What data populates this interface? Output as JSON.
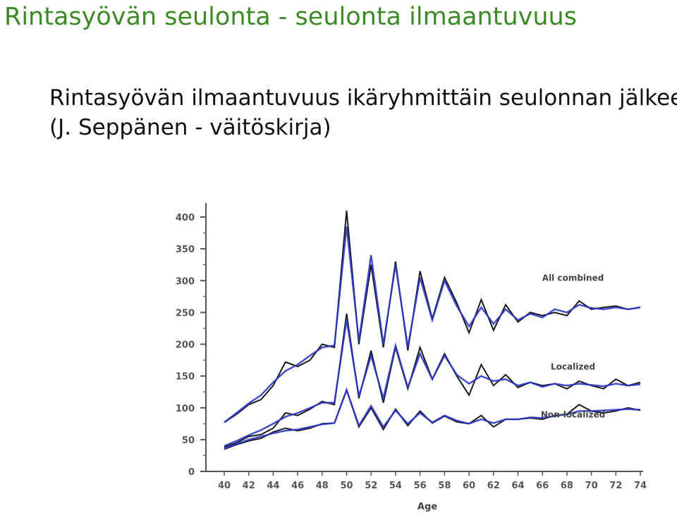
{
  "slide": {
    "title": "Rintasyövän seulonta - seulonta ilmaantuvuus",
    "subtitle_line1": "Rintasyövän ilmaantuvuus ikäryhmittäin seulonnan jälkeen",
    "subtitle_line2": "(J. Seppänen - väitöskirja)"
  },
  "colors": {
    "title": "#3c8a25",
    "observed": "#1a1a1a",
    "fitted": "#2b35c8",
    "axis": "#555555"
  },
  "chart_data": {
    "type": "line",
    "title": "",
    "xlabel": "Age",
    "ylabel": "",
    "x": [
      40,
      41,
      42,
      43,
      44,
      45,
      46,
      47,
      48,
      49,
      50,
      51,
      52,
      53,
      54,
      55,
      56,
      57,
      58,
      59,
      60,
      61,
      62,
      63,
      64,
      65,
      66,
      67,
      68,
      69,
      70,
      71,
      72,
      73,
      74
    ],
    "x_ticks": [
      "40",
      "42",
      "44",
      "46",
      "48",
      "50",
      "52",
      "54",
      "56",
      "58",
      "60",
      "62",
      "64",
      "66",
      "68",
      "70",
      "72",
      "74"
    ],
    "y_ticks": [
      "0",
      "50",
      "100",
      "150",
      "200",
      "250",
      "300",
      "350",
      "400"
    ],
    "xlim": [
      40,
      74
    ],
    "ylim": [
      0,
      400
    ],
    "grid": false,
    "legend": "inline labels right of lines",
    "series": [
      {
        "name": "All combined",
        "observed": [
          77,
          90,
          105,
          113,
          135,
          172,
          165,
          175,
          200,
          195,
          410,
          200,
          325,
          195,
          330,
          190,
          315,
          240,
          305,
          265,
          218,
          270,
          222,
          262,
          235,
          250,
          245,
          250,
          245,
          268,
          255,
          258,
          260,
          255,
          258
        ],
        "fitted": [
          77,
          92,
          107,
          120,
          140,
          158,
          168,
          182,
          195,
          198,
          385,
          205,
          340,
          200,
          325,
          195,
          305,
          238,
          300,
          260,
          228,
          258,
          232,
          255,
          238,
          248,
          242,
          255,
          250,
          262,
          257,
          255,
          258,
          255,
          258
        ]
      },
      {
        "name": "Localized",
        "observed": [
          38,
          45,
          55,
          58,
          68,
          92,
          88,
          98,
          110,
          105,
          248,
          115,
          190,
          108,
          195,
          130,
          195,
          145,
          185,
          150,
          120,
          168,
          135,
          152,
          132,
          140,
          135,
          138,
          130,
          142,
          135,
          130,
          145,
          135,
          140
        ],
        "fitted": [
          40,
          48,
          57,
          65,
          75,
          86,
          92,
          100,
          108,
          108,
          238,
          118,
          182,
          115,
          198,
          132,
          185,
          145,
          182,
          152,
          138,
          150,
          142,
          145,
          135,
          140,
          133,
          138,
          135,
          138,
          136,
          134,
          138,
          135,
          137
        ]
      },
      {
        "name": "Non-localized",
        "observed": [
          35,
          42,
          48,
          52,
          62,
          68,
          64,
          68,
          75,
          76,
          128,
          70,
          100,
          66,
          98,
          72,
          95,
          76,
          87,
          78,
          75,
          88,
          70,
          82,
          82,
          84,
          82,
          88,
          90,
          105,
          95,
          92,
          95,
          100,
          96
        ],
        "fitted": [
          36,
          43,
          50,
          55,
          60,
          64,
          66,
          70,
          74,
          76,
          128,
          72,
          103,
          70,
          96,
          75,
          92,
          77,
          88,
          80,
          75,
          82,
          76,
          82,
          82,
          85,
          84,
          87,
          90,
          95,
          95,
          96,
          97,
          98,
          97
        ]
      }
    ]
  }
}
